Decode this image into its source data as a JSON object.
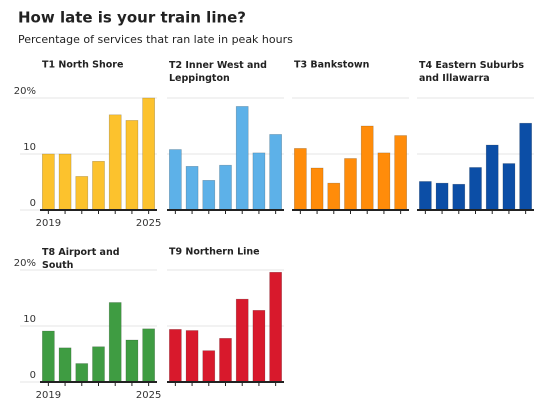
{
  "title": "How late is your train line?",
  "subtitle": "Percentage of services that ran late in peak hours",
  "chart_data": [
    {
      "type": "bar",
      "title": "T1 North Shore",
      "categories": [
        "2019",
        null,
        null,
        null,
        null,
        null,
        "2025"
      ],
      "values": [
        10,
        10,
        6,
        8.7,
        17,
        16,
        20
      ],
      "color": "#fcc22d",
      "ylim": [
        0,
        20
      ],
      "yticks": [
        0,
        10,
        {
          "value": 20,
          "label": "20%"
        }
      ],
      "grid": true,
      "tick_labels": true
    },
    {
      "type": "bar",
      "title": "T2 Inner West and Leppington",
      "values": [
        10.8,
        7.8,
        5.3,
        8,
        18.5,
        10.2,
        13.5
      ],
      "color": "#5db1e8",
      "ylim": [
        0,
        20
      ],
      "yticks": [
        0,
        10,
        20
      ],
      "grid": true,
      "tick_labels": false
    },
    {
      "type": "bar",
      "title": "T3 Bankstown",
      "values": [
        11,
        7.5,
        4.8,
        9.2,
        15,
        10.2,
        13.3
      ],
      "color": "#ff8c0a",
      "ylim": [
        0,
        20
      ],
      "yticks": [
        0,
        10,
        20
      ],
      "grid": true,
      "tick_labels": false
    },
    {
      "type": "bar",
      "title": "T4 Eastern Suburbs and Illawarra",
      "values": [
        5.1,
        4.8,
        4.6,
        7.6,
        11.6,
        8.3,
        15.5
      ],
      "color": "#0c4ea6",
      "ylim": [
        0,
        20
      ],
      "yticks": [
        0,
        10,
        20
      ],
      "grid": true,
      "tick_labels": false
    },
    {
      "type": "bar",
      "title": "T8 Airport and South",
      "categories": [
        "2019",
        null,
        null,
        null,
        null,
        null,
        "2025"
      ],
      "values": [
        9.1,
        6.1,
        3.3,
        6.3,
        14.2,
        7.5,
        9.5
      ],
      "color": "#3f9c42",
      "ylim": [
        0,
        20
      ],
      "yticks": [
        0,
        10,
        {
          "value": 20,
          "label": "20%"
        }
      ],
      "grid": true,
      "tick_labels": true
    },
    {
      "type": "bar",
      "title": "T9 Northern Line",
      "values": [
        9.4,
        9.2,
        5.6,
        7.8,
        14.8,
        12.8,
        19.6
      ],
      "color": "#d8192c",
      "ylim": [
        0,
        20
      ],
      "yticks": [
        0,
        10,
        20
      ],
      "grid": true,
      "tick_labels": false
    }
  ]
}
